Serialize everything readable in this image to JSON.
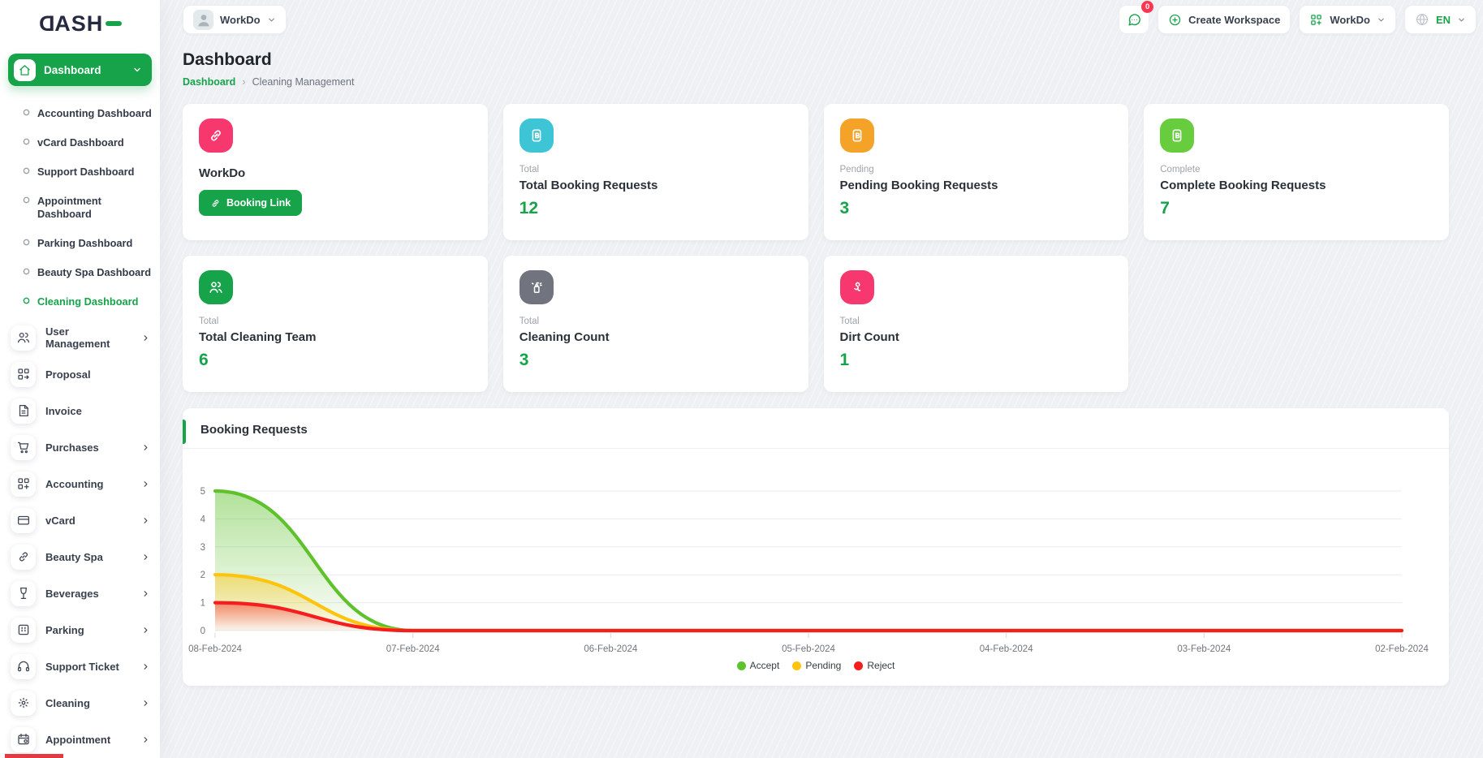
{
  "brand": {
    "logo_first": "D",
    "logo_rest": "ASH"
  },
  "header": {
    "user_workspace": "WorkDo",
    "messages_badge": "0",
    "create_workspace": "Create Workspace",
    "workspace": "WorkDo",
    "language": "EN"
  },
  "sidebar": {
    "dashboard_label": "Dashboard",
    "submenu": [
      "Accounting Dashboard",
      "vCard Dashboard",
      "Support Dashboard",
      "Appointment Dashboard",
      "Parking Dashboard",
      "Beauty Spa Dashboard",
      "Cleaning Dashboard"
    ],
    "active_submenu": "Cleaning Dashboard",
    "menu": [
      {
        "label": "User Management"
      },
      {
        "label": "Proposal"
      },
      {
        "label": "Invoice"
      },
      {
        "label": "Purchases"
      },
      {
        "label": "Accounting"
      },
      {
        "label": "vCard"
      },
      {
        "label": "Beauty Spa"
      },
      {
        "label": "Beverages"
      },
      {
        "label": "Parking"
      },
      {
        "label": "Support Ticket"
      },
      {
        "label": "Cleaning"
      },
      {
        "label": "Appointment"
      }
    ]
  },
  "page": {
    "title": "Dashboard",
    "breadcrumb_home": "Dashboard",
    "breadcrumb_current": "Cleaning Management"
  },
  "cards": {
    "workdo": {
      "title": "WorkDo",
      "button": "Booking Link",
      "icon": "link-icon",
      "accent": "#f7386e"
    },
    "stats": [
      {
        "kicker": "Total",
        "title": "Total Booking Requests",
        "value": "12",
        "icon": "booking-icon",
        "accent": "#3dc5d6"
      },
      {
        "kicker": "Pending",
        "title": "Pending Booking Requests",
        "value": "3",
        "icon": "booking-icon",
        "accent": "#f5a228"
      },
      {
        "kicker": "Complete",
        "title": "Complete Booking Requests",
        "value": "7",
        "icon": "booking-icon",
        "accent": "#67cc3e"
      },
      {
        "kicker": "Total",
        "title": "Total Cleaning Team",
        "value": "6",
        "icon": "users-icon",
        "accent": "#16a34a"
      },
      {
        "kicker": "Total",
        "title": "Cleaning Count",
        "value": "3",
        "icon": "spray-icon",
        "accent": "#71747e"
      },
      {
        "kicker": "Total",
        "title": "Dirt Count",
        "value": "1",
        "icon": "dirt-icon",
        "accent": "#f7386e"
      }
    ]
  },
  "colors": {
    "primary": "#16a34a",
    "badge": "#fd3550"
  },
  "chart_data": {
    "type": "area",
    "title": "Booking Requests",
    "x": [
      "08-Feb-2024",
      "07-Feb-2024",
      "06-Feb-2024",
      "05-Feb-2024",
      "04-Feb-2024",
      "03-Feb-2024",
      "02-Feb-2024"
    ],
    "series": [
      {
        "name": "Accept",
        "color": "#5fc22d",
        "values": [
          5,
          0,
          0,
          0,
          0,
          0,
          0
        ]
      },
      {
        "name": "Pending",
        "color": "#fdc40f",
        "values": [
          2,
          0,
          0,
          0,
          0,
          0,
          0
        ]
      },
      {
        "name": "Reject",
        "color": "#f51d1d",
        "values": [
          1,
          0,
          0,
          0,
          0,
          0,
          0
        ]
      }
    ],
    "ylim": [
      0,
      5
    ],
    "yticks": [
      0,
      1,
      2,
      3,
      4,
      5
    ],
    "grid": true,
    "curve": "smooth",
    "legend_position": "bottom"
  }
}
